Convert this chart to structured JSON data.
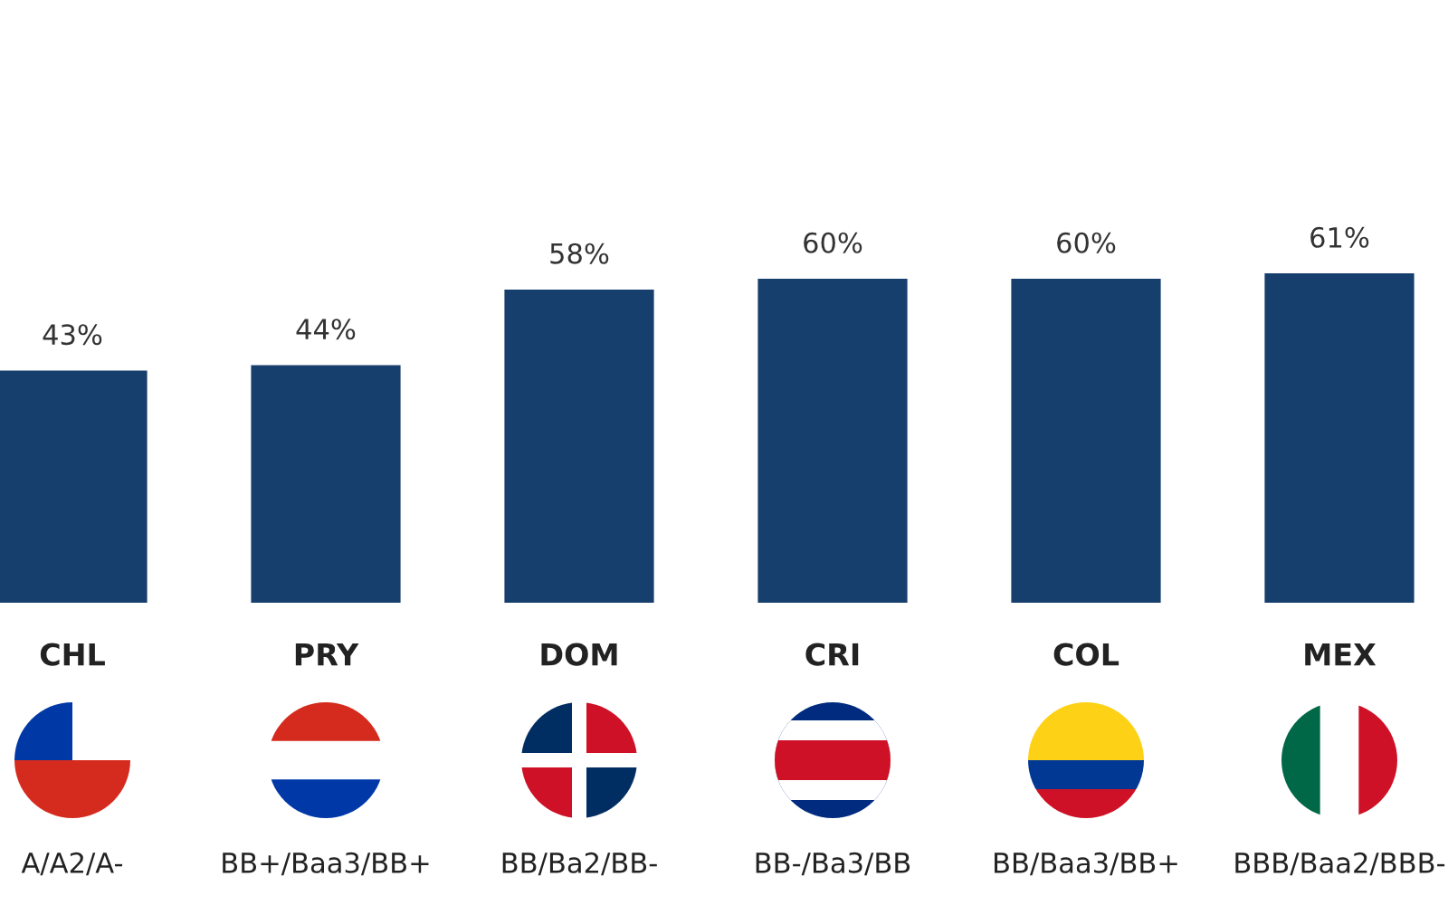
{
  "chart_data": {
    "type": "bar",
    "categories": [
      "CHL",
      "PRY",
      "DOM",
      "CRI",
      "COL",
      "MEX"
    ],
    "values": [
      43,
      44,
      58,
      60,
      60,
      61
    ],
    "value_labels": [
      "43%",
      "44%",
      "58%",
      "60%",
      "60%",
      "61%"
    ],
    "color": "#173f6d",
    "annotations": [
      "A/A2/A-",
      "BB+/Baa3/BB+",
      "BB/Ba2/BB-",
      "BB-/Ba3/BB",
      "BB/Baa3/BB+",
      "BBB/Baa2/BBB-"
    ]
  }
}
